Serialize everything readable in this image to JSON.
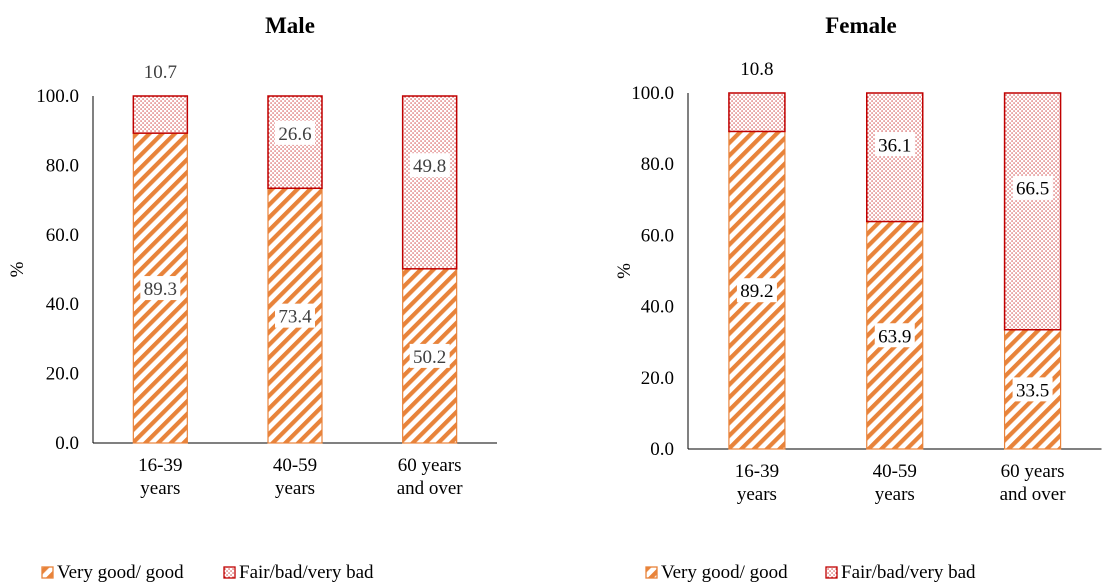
{
  "colors": {
    "good": "#E8833A",
    "bad": "#C00000",
    "axis": "#000000"
  },
  "legend": [
    "Very good/ good",
    "Fair/bad/very bad"
  ],
  "chart_data": [
    {
      "type": "bar",
      "stacked": true,
      "title": "Male",
      "ylabel": "%",
      "ylim": [
        0,
        100
      ],
      "yticks": [
        "0.0",
        "20.0",
        "40.0",
        "60.0",
        "80.0",
        "100.0"
      ],
      "categories": [
        [
          "16-39",
          "years"
        ],
        [
          "40-59",
          "years"
        ],
        [
          "60 years",
          "and over"
        ]
      ],
      "series": [
        {
          "name": "Very good/ good",
          "values": [
            89.3,
            73.4,
            50.2
          ],
          "labels": [
            "89.3",
            "73.4",
            "50.2"
          ]
        },
        {
          "name": "Fair/bad/very bad",
          "values": [
            10.7,
            26.6,
            49.8
          ],
          "labels": [
            "10.7",
            "26.6",
            "49.8"
          ]
        }
      ],
      "legend_position": "bottom"
    },
    {
      "type": "bar",
      "stacked": true,
      "title": "Female",
      "ylabel": "%",
      "ylim": [
        0,
        100
      ],
      "yticks": [
        "0.0",
        "20.0",
        "40.0",
        "60.0",
        "80.0",
        "100.0"
      ],
      "categories": [
        [
          "16-39",
          "years"
        ],
        [
          "40-59",
          "years"
        ],
        [
          "60 years",
          "and over"
        ]
      ],
      "series": [
        {
          "name": "Very good/ good",
          "values": [
            89.2,
            63.9,
            33.5
          ],
          "labels": [
            "89.2",
            "63.9",
            "33.5"
          ]
        },
        {
          "name": "Fair/bad/very bad",
          "values": [
            10.8,
            36.1,
            66.5
          ],
          "labels": [
            "10.8",
            "36.1",
            "66.5"
          ]
        }
      ],
      "legend_position": "bottom"
    }
  ]
}
